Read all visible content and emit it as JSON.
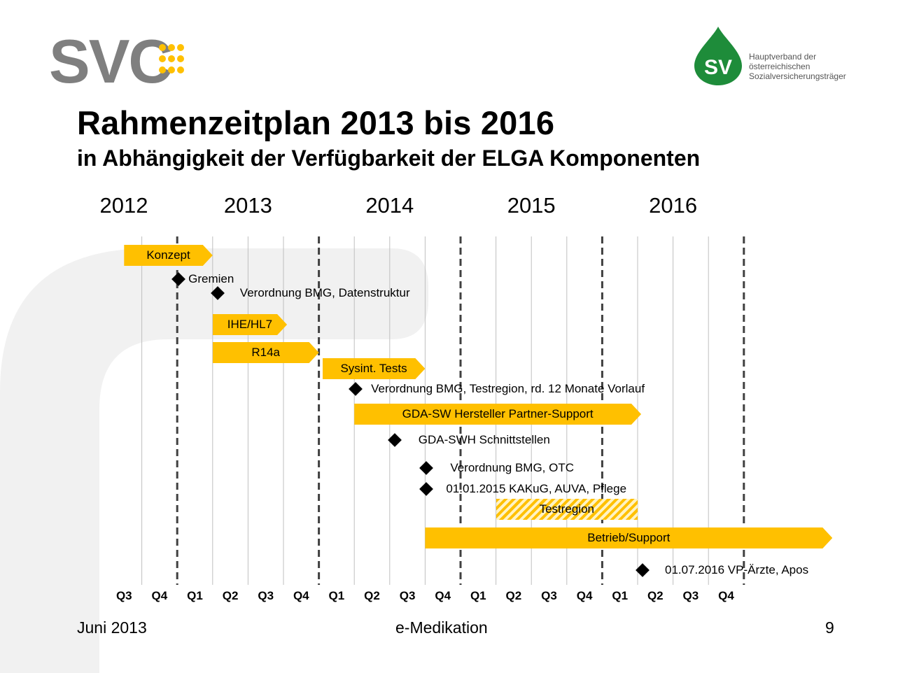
{
  "header": {
    "title": "Rahmenzeitplan 2013 bis 2016",
    "subtitle": "in Abhängigkeit der Verfügbarkeit der ELGA Komponenten"
  },
  "logos": {
    "left": {
      "text": "SVC",
      "color": "#7f7f7f",
      "dots_color": "#ffc000"
    },
    "right": {
      "mark": "SV",
      "color": "#1e8c3a",
      "lines": [
        "Hauptverband der",
        "österreichischen",
        "Sozialversicherungsträger"
      ]
    }
  },
  "colors": {
    "bar": "#ffc000",
    "milestone": "#000000",
    "grid": "#7f7f7f"
  },
  "years": [
    "2012",
    "2013",
    "2014",
    "2015",
    "2016"
  ],
  "quarters": [
    "Q3",
    "Q4",
    "Q1",
    "Q2",
    "Q3",
    "Q4",
    "Q1",
    "Q2",
    "Q3",
    "Q4",
    "Q1",
    "Q2",
    "Q3",
    "Q4",
    "Q1",
    "Q2",
    "Q3",
    "Q4"
  ],
  "bars": [
    {
      "label": "Konzept",
      "start": 0.5,
      "end": 3.0
    },
    {
      "label": "IHE/HL7",
      "start": 3.0,
      "end": 5.1
    },
    {
      "label": "R14a",
      "start": 3.0,
      "end": 6.0
    },
    {
      "label": "Sysint. Tests",
      "start": 6.1,
      "end": 9.0
    },
    {
      "label": "GDA-SW Hersteller Partner-Support",
      "start": 7.0,
      "end": 15.1
    },
    {
      "label": "Testregion",
      "start": 11.0,
      "end": 15.0,
      "hatched": true
    },
    {
      "label": "Betrieb/Support",
      "start": 9.0,
      "end": 20.5
    }
  ],
  "milestones": [
    {
      "label": "Gremien",
      "at": 1.9
    },
    {
      "label": "Verordnung BMG, Datenstruktur",
      "at": 3.0
    },
    {
      "label": "Verordnung BMG, Testregion, rd. 12 Monate Vorlauf",
      "at": 6.9
    },
    {
      "label": "GDA-SWH Schnittstellen",
      "at": 8.0
    },
    {
      "label": "Verordnung BMG, OTC",
      "at": 8.9
    },
    {
      "label": "01.01.2015 KAKuG, AUVA, Pflege",
      "at": 8.9
    },
    {
      "label": "01.07.2016 VP-Ärzte, Apos",
      "at": 15.0
    }
  ],
  "footer": {
    "date": "Juni 2013",
    "center": "e-Medikation",
    "page": "9"
  }
}
